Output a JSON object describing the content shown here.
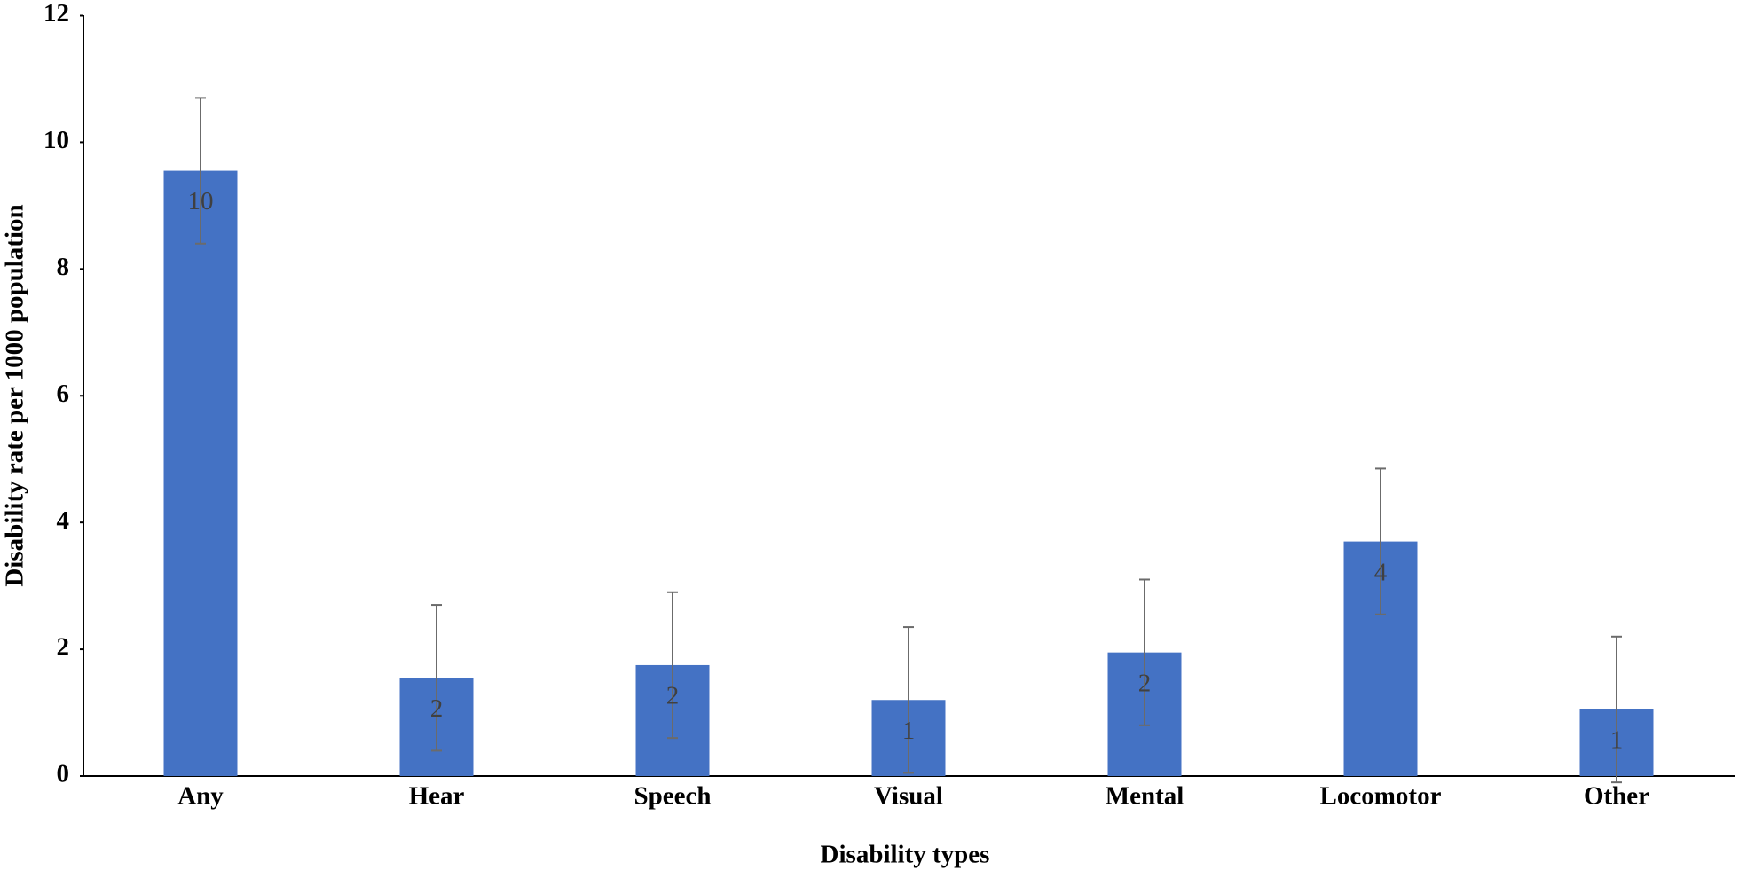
{
  "chart_data": {
    "type": "bar",
    "x_label": "Disability types",
    "y_label": "Disability rate per 1000 population",
    "categories": [
      "Any",
      "Hear",
      "Speech",
      "Visual",
      "Mental",
      "Locomotor",
      "Other"
    ],
    "values": [
      9.55,
      1.55,
      1.75,
      1.2,
      1.95,
      3.7,
      1.05
    ],
    "value_labels": [
      "10",
      "2",
      "2",
      "1",
      "2",
      "4",
      "1"
    ],
    "errors": [
      1.15,
      1.15,
      1.15,
      1.15,
      1.15,
      1.15,
      1.15
    ],
    "color": "#4472c4",
    "ylim": [
      0,
      12
    ],
    "yticks": [
      0,
      2,
      4,
      6,
      8,
      10,
      12
    ]
  }
}
